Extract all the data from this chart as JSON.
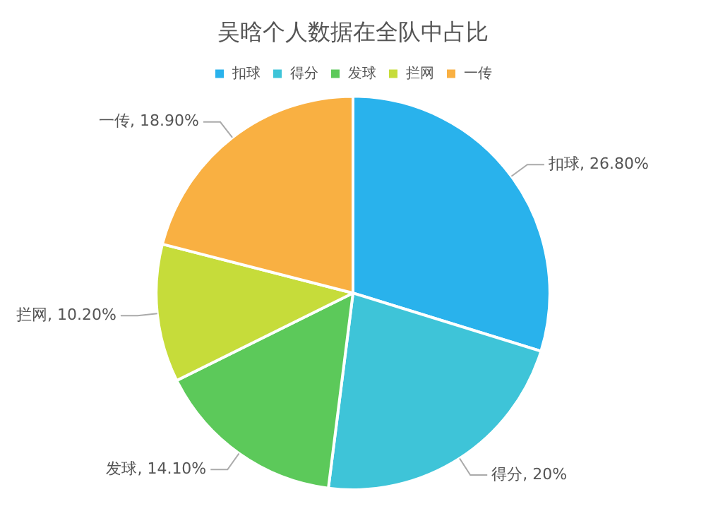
{
  "chart_data": {
    "type": "pie",
    "title": "吴晗个人数据在全队中占比",
    "categories": [
      "扣球",
      "得分",
      "发球",
      "拦网",
      "一传"
    ],
    "values": [
      26.8,
      20,
      14.1,
      10.2,
      18.9
    ],
    "value_labels": [
      "扣球, 26.80%",
      "得分, 20%",
      "发球, 14.10%",
      "拦网, 10.20%",
      "一传, 18.90%"
    ],
    "colors": [
      "#29b2ec",
      "#3ec4d8",
      "#5cc95a",
      "#c6dc3a",
      "#f9b042"
    ],
    "legend": "top"
  }
}
